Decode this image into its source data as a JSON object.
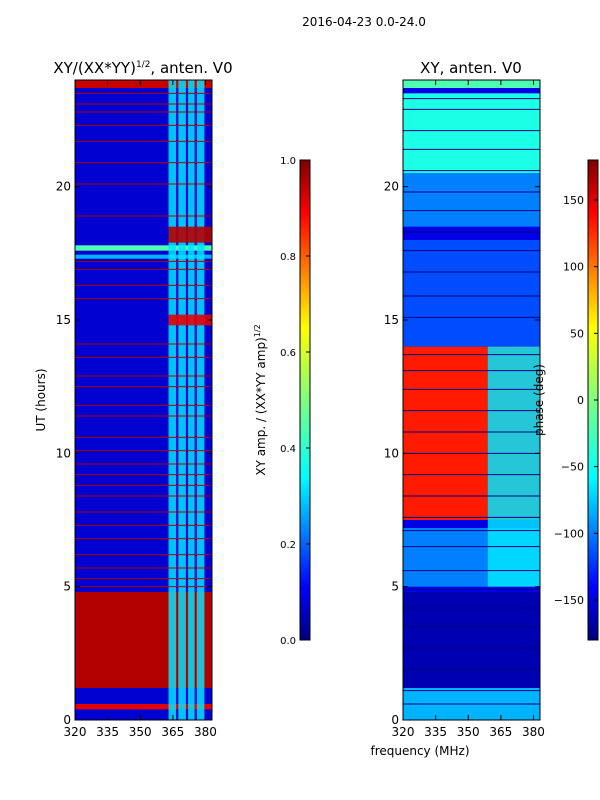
{
  "figure": {
    "suptitle": "2016-04-23 0.0-24.0",
    "xlabel": "frequency (MHz)"
  },
  "chart_data": [
    {
      "type": "heatmap",
      "title_main": "XY/(XX*YY)",
      "title_exp": "1/2",
      "title_tail": ", anten. V0",
      "ylabel": "UT (hours)",
      "x_range": [
        320,
        383
      ],
      "y_range": [
        0,
        24
      ],
      "x_ticks": [
        320,
        335,
        350,
        365,
        380
      ],
      "y_ticks": [
        0,
        5,
        10,
        15,
        20
      ],
      "colorbar": {
        "label_main": "XY amp. / (XX*YY amp)",
        "label_exp": "1/2",
        "range": [
          0.0,
          1.0
        ],
        "ticks": [
          "0.0",
          "0.2",
          "0.4",
          "0.6",
          "0.8",
          "1.0"
        ],
        "tick_values": [
          0.0,
          0.2,
          0.4,
          0.6,
          0.8,
          1.0
        ]
      },
      "background_value": 0.08,
      "row_bands": [
        {
          "y0": 23.7,
          "y1": 24.0,
          "v": 0.93
        },
        {
          "y0": 17.6,
          "y1": 17.8,
          "v": 0.45
        },
        {
          "y0": 17.3,
          "y1": 17.45,
          "v": 0.3
        },
        {
          "y0": 1.2,
          "y1": 4.8,
          "v": 0.95
        },
        {
          "y0": 0.4,
          "y1": 0.6,
          "v": 0.9
        }
      ],
      "column_bands": [
        {
          "x0": 363,
          "x1": 366.5
        },
        {
          "x0": 367.5,
          "x1": 371
        },
        {
          "x0": 372,
          "x1": 375
        },
        {
          "x0": 376,
          "x1": 379.5
        }
      ],
      "hot_spots": [
        {
          "x0": 363,
          "x1": 383,
          "y0": 17.9,
          "y1": 18.5,
          "v": 0.95
        },
        {
          "x0": 363,
          "x1": 383,
          "y0": 14.8,
          "y1": 15.2,
          "v": 0.9
        }
      ],
      "flag_lines": [
        23.5,
        23.1,
        22.8,
        22.3,
        21.7,
        20.9,
        20.1,
        18.9,
        17.2,
        16.9,
        16.3,
        15.8,
        14.1,
        13.6,
        12.9,
        12.5,
        11.8,
        11.4,
        10.6,
        10.1,
        9.6,
        9.2,
        8.8,
        8.4,
        7.8,
        7.3,
        6.8,
        6.2,
        5.7,
        5.3,
        5.0
      ]
    },
    {
      "type": "heatmap",
      "title_main": "XY, anten. V0",
      "x_range": [
        320,
        383
      ],
      "y_range": [
        0,
        24
      ],
      "x_ticks": [
        320,
        335,
        350,
        365,
        380
      ],
      "y_ticks": [
        0,
        5,
        10,
        15,
        20
      ],
      "colorbar": {
        "label_main": "phase (deg)",
        "range": [
          -180,
          180
        ],
        "ticks": [
          "150",
          "100",
          "50",
          "0",
          "−50",
          "−100",
          "−150"
        ],
        "tick_values": [
          150,
          100,
          50,
          0,
          -50,
          -100,
          -150
        ]
      },
      "row_bands": [
        {
          "y0": 23.7,
          "y1": 24.0,
          "v": 0.45
        },
        {
          "y0": 20.5,
          "y1": 23.5,
          "v": 0.4
        },
        {
          "y0": 18.5,
          "y1": 20.5,
          "v": 0.25
        },
        {
          "y0": 14.0,
          "y1": 18.0,
          "v": 0.2
        },
        {
          "y0": 7.5,
          "y1": 14.0,
          "v": 0.85
        },
        {
          "y0": 5.0,
          "y1": 7.2,
          "v": 0.25
        },
        {
          "y0": 1.2,
          "y1": 4.8,
          "v": 0.05
        },
        {
          "y0": 0.0,
          "y1": 1.2,
          "v": 0.3
        }
      ],
      "column_bands": [
        {
          "x0": 359,
          "x1": 383,
          "y0": 5.0,
          "y1": 14.0,
          "v": 0.35
        }
      ],
      "flag_lines": [
        23.3,
        22.9,
        22.1,
        21.4,
        20.6,
        19.8,
        19.1,
        18.3,
        17.6,
        16.8,
        15.9,
        15.1,
        13.7,
        13.1,
        12.4,
        11.6,
        10.8,
        10.0,
        9.2,
        8.4,
        7.6,
        7.1,
        6.5,
        5.6,
        4.9,
        4.2,
        3.5,
        2.7,
        1.9,
        1.1,
        0.6
      ]
    }
  ]
}
